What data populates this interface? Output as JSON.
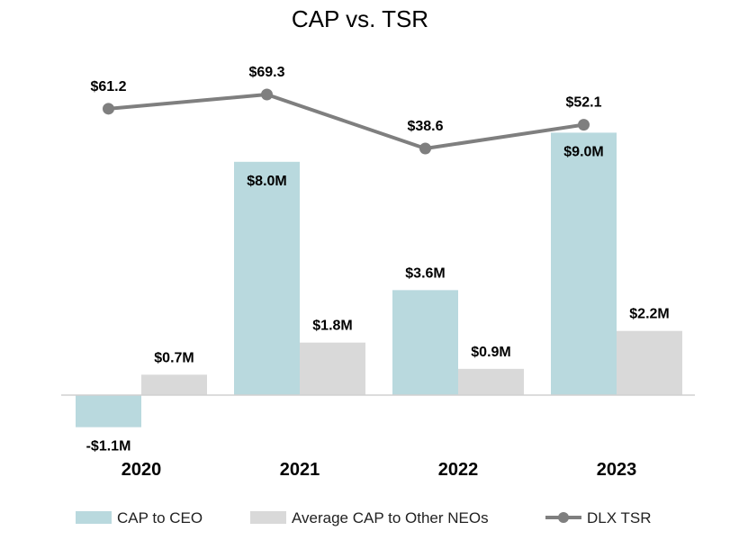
{
  "chart_data": {
    "type": "bar",
    "title": "CAP vs. TSR",
    "categories": [
      "2020",
      "2021",
      "2022",
      "2023"
    ],
    "series": [
      {
        "name": "CAP to CEO",
        "type": "bar",
        "axis": "left",
        "color": "#b9d9de",
        "values": [
          -1.1,
          8.0,
          3.6,
          9.0
        ],
        "labels": [
          "-$1.1M",
          "$8.0M",
          "$3.6M",
          "$9.0M"
        ]
      },
      {
        "name": "Average CAP to Other NEOs",
        "type": "bar",
        "axis": "left",
        "color": "#d9d9d9",
        "values": [
          0.7,
          1.8,
          0.9,
          2.2
        ],
        "labels": [
          "$0.7M",
          "$1.8M",
          "$0.9M",
          "$2.2M"
        ]
      },
      {
        "name": "DLX TSR",
        "type": "line",
        "axis": "right",
        "color": "#7f7f7f",
        "values": [
          61.2,
          69.3,
          38.6,
          52.1
        ],
        "labels": [
          "$61.2",
          "$69.3",
          "$38.6",
          "$52.1"
        ]
      }
    ],
    "ylim": [
      -1.6,
      9.5
    ],
    "y2lim": [
      -200,
      80
    ],
    "grid": false,
    "legend": "bottom"
  }
}
